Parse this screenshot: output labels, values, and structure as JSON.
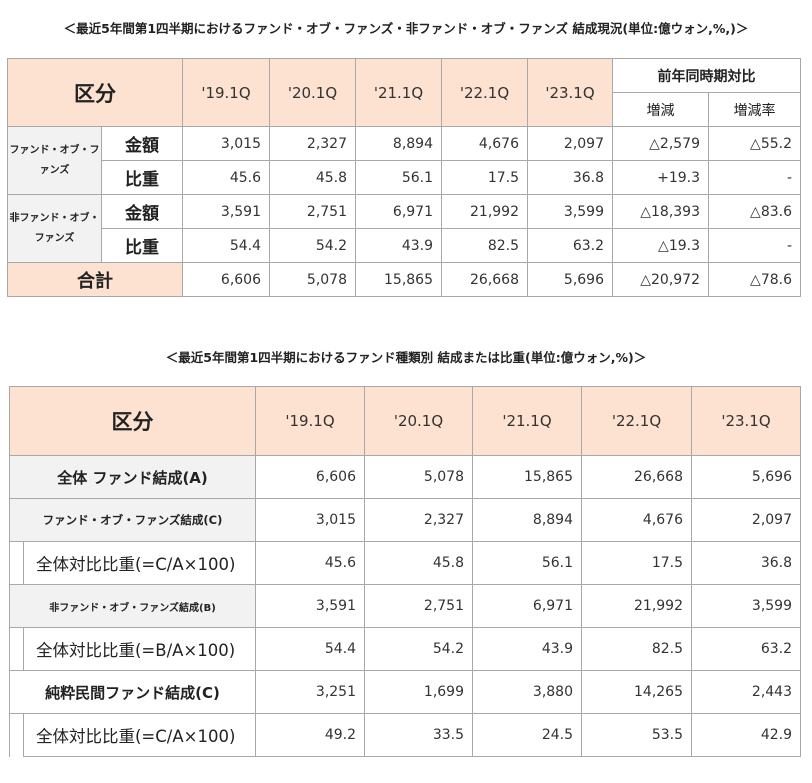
{
  "table1": {
    "caption": "＜最近5年間第1四半期におけるファンド・オブ・ファンズ・非ファンド・オブ・ファンズ 結成現況(単位:億ウォン,%,)＞",
    "header": {
      "category": "区分",
      "quarters": [
        "'19.1Q",
        "'20.1Q",
        "'21.1Q",
        "'22.1Q",
        "'23.1Q"
      ],
      "comparison": "前年同時期対比",
      "change": "増減",
      "change_rate": "増減率"
    },
    "groups": [
      {
        "name": "ファンド・オブ・ファンズ",
        "rows": [
          {
            "metric": "金額",
            "values": [
              "3,015",
              "2,327",
              "8,894",
              "4,676",
              "2,097"
            ],
            "change": "△2,579",
            "rate": "△55.2"
          },
          {
            "metric": "比重",
            "values": [
              "45.6",
              "45.8",
              "56.1",
              "17.5",
              "36.8"
            ],
            "change": "+19.3",
            "rate": "-"
          }
        ]
      },
      {
        "name": "非ファンド・オブ・ファンズ",
        "rows": [
          {
            "metric": "金額",
            "values": [
              "3,591",
              "2,751",
              "6,971",
              "21,992",
              "3,599"
            ],
            "change": "△18,393",
            "rate": "△83.6"
          },
          {
            "metric": "比重",
            "values": [
              "54.4",
              "54.2",
              "43.9",
              "82.5",
              "63.2"
            ],
            "change": "△19.3",
            "rate": "-"
          }
        ]
      }
    ],
    "total": {
      "label": "合計",
      "values": [
        "6,606",
        "5,078",
        "15,865",
        "26,668",
        "5,696"
      ],
      "change": "△20,972",
      "rate": "△78.6"
    }
  },
  "table2": {
    "caption": "＜最近5年間第1四半期におけるファンド種類別 結成または比重(単位:億ウォン,%)＞",
    "header": {
      "category": "区分",
      "quarters": [
        "'19.1Q",
        "'20.1Q",
        "'21.1Q",
        "'22.1Q",
        "'23.1Q"
      ]
    },
    "rows": [
      {
        "label": "全体 ファンド結成(A)",
        "values": [
          "6,606",
          "5,078",
          "15,865",
          "26,668",
          "5,696"
        ]
      },
      {
        "label": "ファンド・オブ・ファンズ結成(C)",
        "values": [
          "3,015",
          "2,327",
          "8,894",
          "4,676",
          "2,097"
        ]
      },
      {
        "label": "全体対比比重(=C/A×100)",
        "values": [
          "45.6",
          "45.8",
          "56.1",
          "17.5",
          "36.8"
        ]
      },
      {
        "label": "非ファンド・オブ・ファンズ結成(B)",
        "values": [
          "3,591",
          "2,751",
          "6,971",
          "21,992",
          "3,599"
        ]
      },
      {
        "label": "全体対比比重(=B/A×100)",
        "values": [
          "54.4",
          "54.2",
          "43.9",
          "82.5",
          "63.2"
        ]
      },
      {
        "label": "純粋民間ファンド結成(C)",
        "values": [
          "3,251",
          "1,699",
          "3,880",
          "14,265",
          "2,443"
        ]
      },
      {
        "label": "全体対比比重(=C/A×100)",
        "values": [
          "49.2",
          "33.5",
          "24.5",
          "53.5",
          "42.9"
        ]
      }
    ]
  },
  "colors": {
    "header_fill": "#fde1d1",
    "label_fill": "#f2f2f2",
    "border": "#a8a8a8"
  }
}
